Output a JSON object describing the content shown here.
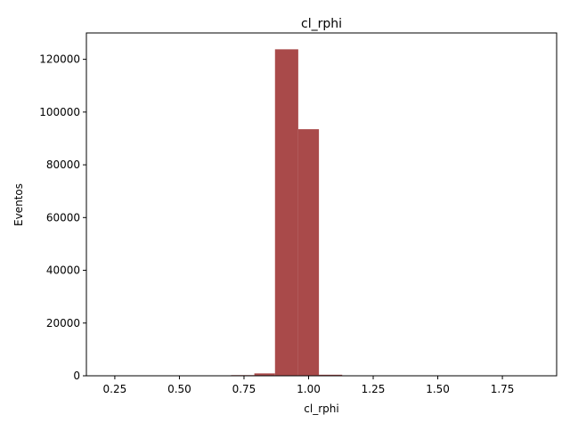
{
  "chart_data": {
    "type": "bar",
    "title": "cl_rphi",
    "xlabel": "cl_rphi",
    "ylabel": "Eventos",
    "xlim": [
      0.14,
      1.96
    ],
    "ylim": [
      0,
      130000
    ],
    "x_ticks": [
      0.25,
      0.5,
      0.75,
      1.0,
      1.25,
      1.5,
      1.75
    ],
    "x_tick_labels": [
      "0.25",
      "0.50",
      "0.75",
      "1.00",
      "1.25",
      "1.50",
      "1.75"
    ],
    "y_ticks": [
      0,
      20000,
      40000,
      60000,
      80000,
      100000,
      120000
    ],
    "y_tick_labels": [
      "0",
      "20000",
      "40000",
      "60000",
      "80000",
      "100000",
      "120000"
    ],
    "grid": false,
    "bar_color": "#a94a4a",
    "bins": [
      {
        "x0": 0.62,
        "x1": 0.7,
        "count": 150
      },
      {
        "x0": 0.7,
        "x1": 0.79,
        "count": 250
      },
      {
        "x0": 0.79,
        "x1": 0.87,
        "count": 900
      },
      {
        "x0": 0.87,
        "x1": 0.96,
        "count": 123800
      },
      {
        "x0": 0.96,
        "x1": 1.04,
        "count": 93500
      },
      {
        "x0": 1.04,
        "x1": 1.13,
        "count": 400
      },
      {
        "x0": 1.13,
        "x1": 1.21,
        "count": 60
      }
    ]
  }
}
